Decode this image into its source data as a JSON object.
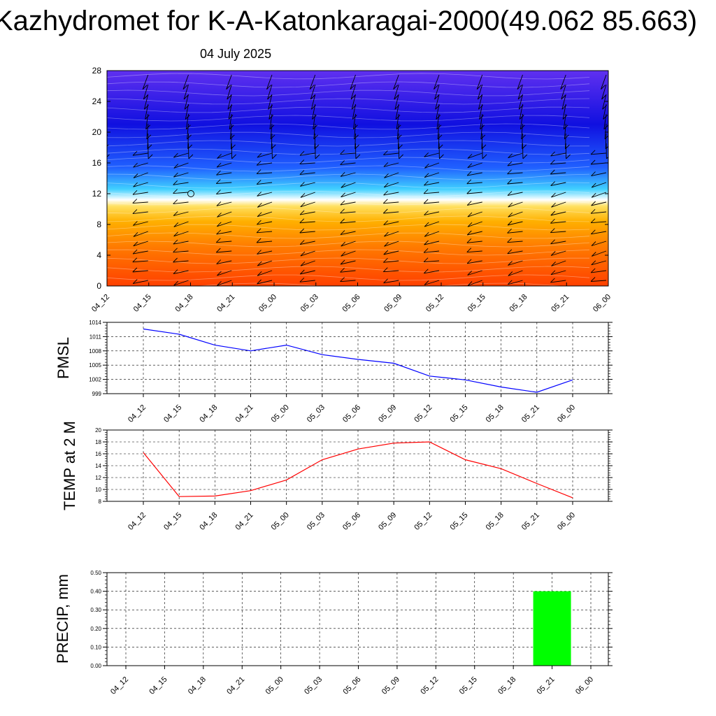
{
  "title": "Kazhydromet for K-A-Katonkaragai-2000(49.062 85.663)",
  "subtitle": "04 July 2025",
  "time_labels": [
    "04_12",
    "04_15",
    "04_18",
    "04_21",
    "05_00",
    "05_03",
    "05_06",
    "05_09",
    "05_12",
    "05_15",
    "05_18",
    "05_21",
    "06_00"
  ],
  "chart_data": [
    {
      "type": "heatmap",
      "panel": "upper-air cross-section",
      "x": [
        "04_12",
        "04_15",
        "04_18",
        "04_21",
        "05_00",
        "05_03",
        "05_06",
        "05_09",
        "05_12",
        "05_15",
        "05_18",
        "05_21",
        "06_00"
      ],
      "yticks": [
        "0",
        "4",
        "8",
        "12",
        "16",
        "20",
        "24",
        "28"
      ],
      "ylim": [
        0,
        28
      ],
      "colormap": [
        "#ff4000",
        "#ff7a00",
        "#ffb000",
        "#ffe060",
        "#ffffff",
        "#40d0ff",
        "#2060ff",
        "#1010e0",
        "#6030f0"
      ],
      "overlay": "wind barbs",
      "grid": false
    },
    {
      "type": "line",
      "ylabel": "PMSL",
      "x": [
        "04_12",
        "04_15",
        "04_18",
        "04_21",
        "05_00",
        "05_03",
        "05_06",
        "05_09",
        "05_12",
        "05_15",
        "05_18",
        "05_21",
        "06_00"
      ],
      "values": [
        1012.6,
        1011.5,
        1009.2,
        1008.0,
        1009.2,
        1007.2,
        1006.2,
        1005.4,
        1002.7,
        1001.9,
        1000.4,
        999.3,
        1001.9
      ],
      "yticks": [
        "999",
        "1002",
        "1005",
        "1008",
        "1011",
        "1014"
      ],
      "ylim": [
        999,
        1014
      ],
      "color": "#0000ff",
      "grid": true
    },
    {
      "type": "line",
      "ylabel": "TEMP at 2 M",
      "x": [
        "04_12",
        "04_15",
        "04_18",
        "04_21",
        "05_00",
        "05_03",
        "05_06",
        "05_09",
        "05_12",
        "05_15",
        "05_18",
        "05_21",
        "06_00"
      ],
      "values": [
        16.2,
        8.8,
        8.9,
        9.8,
        11.6,
        15.0,
        16.8,
        17.8,
        18.0,
        15.0,
        13.5,
        11.0,
        8.6
      ],
      "yticks": [
        "8",
        "10",
        "12",
        "14",
        "16",
        "18",
        "20"
      ],
      "ylim": [
        8,
        20
      ],
      "color": "#ff0000",
      "grid": true
    },
    {
      "type": "bar",
      "ylabel": "PRECIP, mm",
      "categories": [
        "04_12",
        "04_15",
        "04_18",
        "04_21",
        "05_00",
        "05_03",
        "05_06",
        "05_09",
        "05_12",
        "05_15",
        "05_18",
        "05_21",
        "06_00"
      ],
      "values": [
        0,
        0,
        0,
        0,
        0,
        0,
        0,
        0,
        0,
        0,
        0,
        0.4,
        0
      ],
      "yticks": [
        "0.00",
        "0.10",
        "0.20",
        "0.30",
        "0.40",
        "0.50"
      ],
      "ylim": [
        0,
        0.5
      ],
      "color": "#00ff00",
      "grid": true
    }
  ]
}
